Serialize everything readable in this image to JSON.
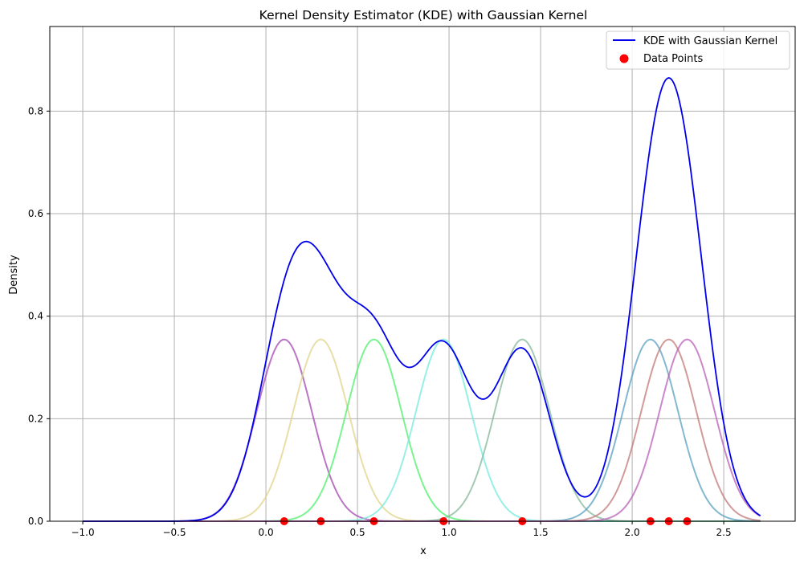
{
  "chart_data": {
    "type": "line",
    "title": "Kernel Density Estimator (KDE) with Gaussian Kernel",
    "xlabel": "x",
    "ylabel": "Density",
    "xlim": [
      -1.18,
      2.89
    ],
    "ylim": [
      0.0,
      0.965
    ],
    "x_ticks": [
      -1.0,
      -0.5,
      0.0,
      0.5,
      1.0,
      1.5,
      2.0,
      2.5
    ],
    "x_tick_labels": [
      "−1.0",
      "−0.5",
      "0.0",
      "0.5",
      "1.0",
      "1.5",
      "2.0",
      "2.5"
    ],
    "y_ticks": [
      0.0,
      0.2,
      0.4,
      0.6,
      0.8
    ],
    "y_tick_labels": [
      "0.0",
      "0.2",
      "0.4",
      "0.6",
      "0.8"
    ],
    "grid": true,
    "legend_position": "top-right",
    "x_range": [
      -1.0,
      2.7
    ],
    "kernel_bandwidth": 0.15,
    "data_points": [
      0.1,
      0.3,
      0.59,
      0.97,
      1.4,
      2.1,
      2.2,
      2.3
    ],
    "kernel_colors": [
      "#a347b0",
      "#e0d48a",
      "#4cf06a",
      "#74eadc",
      "#86b89a",
      "#5aa0c0",
      "#c07878",
      "#b860b8"
    ],
    "series": [
      {
        "name": "KDE with Gaussian Kernel",
        "color": "#0000ee",
        "kind": "line"
      },
      {
        "name": "Data Points",
        "color": "#ff0000",
        "kind": "scatter"
      }
    ]
  }
}
